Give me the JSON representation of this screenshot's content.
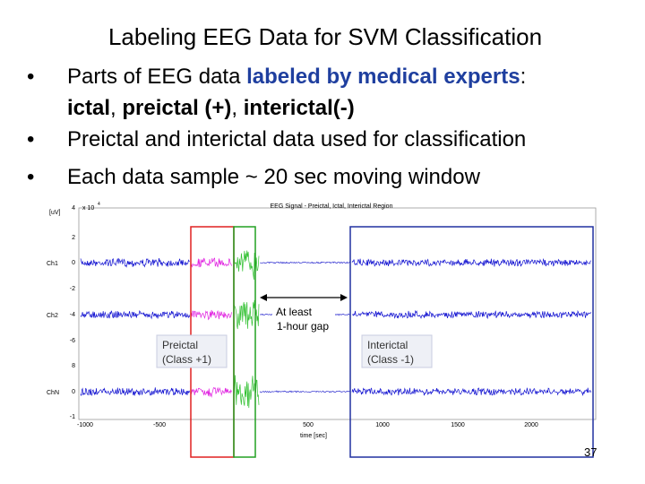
{
  "title": "Labeling EEG Data for SVM Classification",
  "bullets": [
    {
      "lines": [
        [
          "Parts of EEG data ",
          "labeled by medical experts",
          ":"
        ],
        [
          "ictal",
          ", ",
          "preictal (+)",
          ", ",
          "interictal(-)"
        ]
      ]
    },
    {
      "lines": [
        [
          "Preictal and interictal data used for classification"
        ]
      ]
    },
    {
      "lines": [
        [
          "Each data sample ~ 20 sec moving window"
        ]
      ]
    }
  ],
  "figure": {
    "title": "EEG Signal - Preictal, Ictal, Interictal Region",
    "y_unit": "[uV]",
    "y_scale": "x 10",
    "y_scale_exp": "4",
    "y_labels": [
      "4",
      "2",
      "0",
      "-2",
      "-4",
      "-6",
      "8",
      "0",
      "-1"
    ],
    "channels": [
      "Ch1",
      "Ch2",
      "ChN"
    ],
    "x_labels": [
      "-1000",
      "-500",
      "500",
      "1000",
      "1500",
      "2000"
    ],
    "x_label": "time [sec]",
    "gap_label": [
      "At least",
      "1-hour gap"
    ],
    "preictal_label": [
      "Preictal",
      "(Class +1)"
    ],
    "interictal_label": [
      "Interictal",
      "(Class -1)"
    ]
  },
  "page_number": "37"
}
